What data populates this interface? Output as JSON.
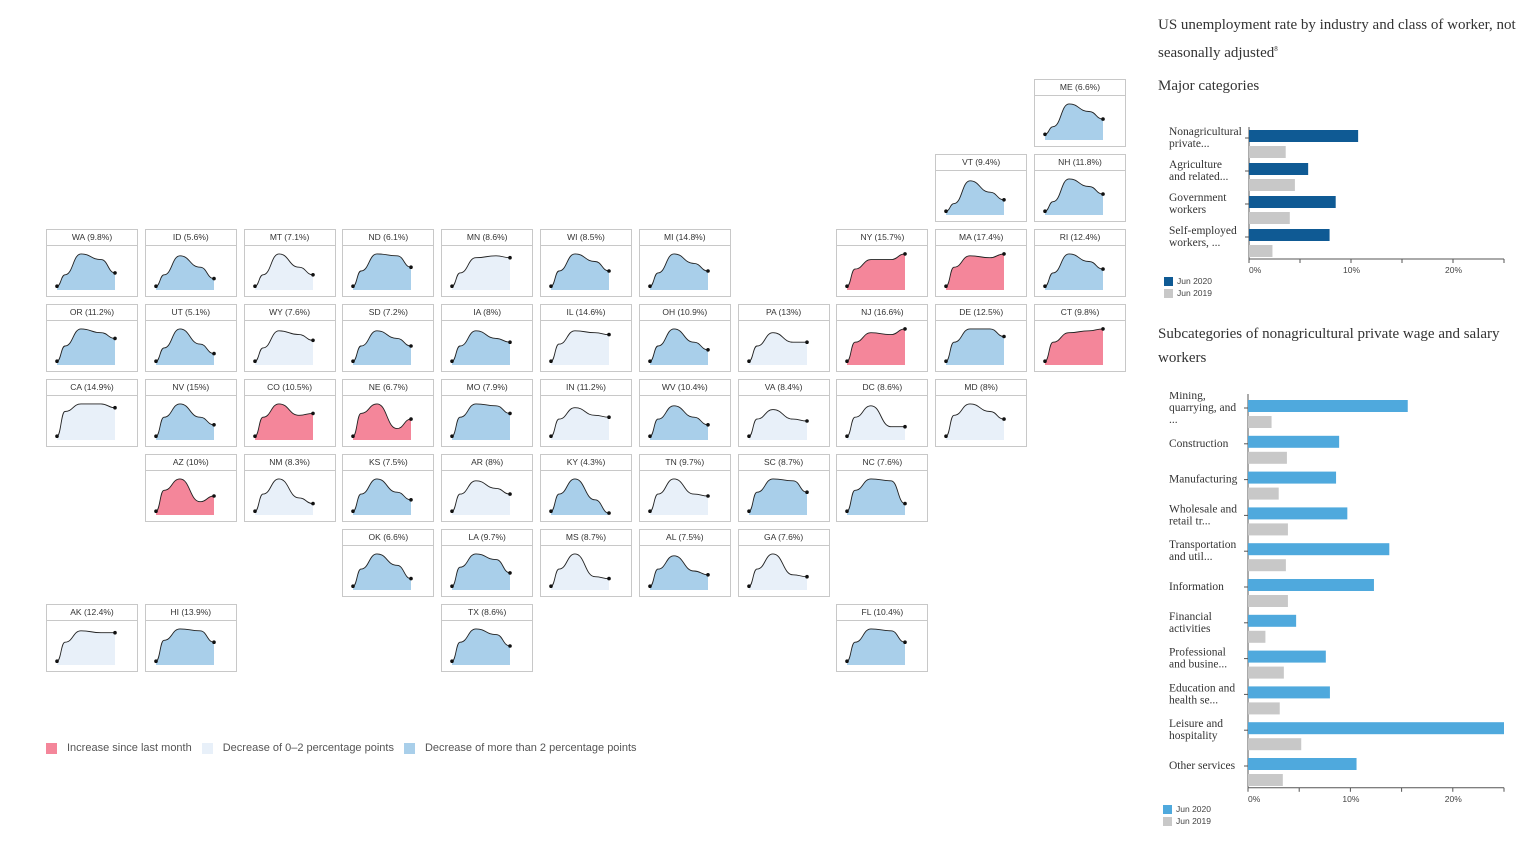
{
  "colors": {
    "increase": "#F4869A",
    "small_decrease": "#E8F0F9",
    "large_decrease": "#A9CFEA",
    "major_2020": "#0F5A94",
    "sub_2020": "#4FA9DD",
    "jun2019": "#C8C8C8"
  },
  "legend": {
    "increase": "Increase since last month",
    "small_decrease": "Decrease of 0–2 percentage points",
    "large_decrease": "Decrease of more than 2 percentage points"
  },
  "states": [
    {
      "abbr": "ME",
      "rate": "6.6%",
      "col": 10,
      "row": 0,
      "cat": "large_decrease",
      "curve": [
        0.15,
        0.35,
        0.95,
        0.75,
        0.55
      ]
    },
    {
      "abbr": "VT",
      "rate": "9.4%",
      "col": 9,
      "row": 1,
      "cat": "large_decrease",
      "curve": [
        0.1,
        0.3,
        0.9,
        0.6,
        0.4
      ]
    },
    {
      "abbr": "NH",
      "rate": "11.8%",
      "col": 10,
      "row": 1,
      "cat": "large_decrease",
      "curve": [
        0.1,
        0.35,
        0.95,
        0.75,
        0.55
      ]
    },
    {
      "abbr": "WA",
      "rate": "9.8%",
      "col": 0,
      "row": 2,
      "cat": "large_decrease",
      "curve": [
        0.1,
        0.4,
        0.95,
        0.8,
        0.45
      ]
    },
    {
      "abbr": "ID",
      "rate": "5.6%",
      "col": 1,
      "row": 2,
      "cat": "large_decrease",
      "curve": [
        0.1,
        0.4,
        0.9,
        0.6,
        0.3
      ]
    },
    {
      "abbr": "MT",
      "rate": "7.1%",
      "col": 2,
      "row": 2,
      "cat": "small_decrease",
      "curve": [
        0.1,
        0.4,
        0.95,
        0.6,
        0.4
      ]
    },
    {
      "abbr": "ND",
      "rate": "6.1%",
      "col": 3,
      "row": 2,
      "cat": "large_decrease",
      "curve": [
        0.1,
        0.5,
        0.95,
        0.9,
        0.6
      ]
    },
    {
      "abbr": "MN",
      "rate": "8.6%",
      "col": 4,
      "row": 2,
      "cat": "small_decrease",
      "curve": [
        0.1,
        0.45,
        0.85,
        0.9,
        0.85
      ]
    },
    {
      "abbr": "WI",
      "rate": "8.5%",
      "col": 5,
      "row": 2,
      "cat": "large_decrease",
      "curve": [
        0.1,
        0.5,
        0.95,
        0.75,
        0.5
      ]
    },
    {
      "abbr": "MI",
      "rate": "14.8%",
      "col": 6,
      "row": 2,
      "cat": "large_decrease",
      "curve": [
        0.1,
        0.45,
        0.95,
        0.7,
        0.5
      ]
    },
    {
      "abbr": "NY",
      "rate": "15.7%",
      "col": 8,
      "row": 2,
      "cat": "increase",
      "curve": [
        0.1,
        0.55,
        0.8,
        0.8,
        0.95
      ]
    },
    {
      "abbr": "MA",
      "rate": "17.4%",
      "col": 9,
      "row": 2,
      "cat": "increase",
      "curve": [
        0.1,
        0.6,
        0.9,
        0.85,
        0.95
      ]
    },
    {
      "abbr": "RI",
      "rate": "12.4%",
      "col": 10,
      "row": 2,
      "cat": "large_decrease",
      "curve": [
        0.1,
        0.45,
        0.95,
        0.75,
        0.55
      ]
    },
    {
      "abbr": "OR",
      "rate": "11.2%",
      "col": 0,
      "row": 3,
      "cat": "large_decrease",
      "curve": [
        0.1,
        0.5,
        0.95,
        0.85,
        0.7
      ]
    },
    {
      "abbr": "UT",
      "rate": "5.1%",
      "col": 1,
      "row": 3,
      "cat": "large_decrease",
      "curve": [
        0.1,
        0.45,
        0.95,
        0.55,
        0.3
      ]
    },
    {
      "abbr": "WY",
      "rate": "7.6%",
      "col": 2,
      "row": 3,
      "cat": "small_decrease",
      "curve": [
        0.1,
        0.45,
        0.9,
        0.8,
        0.65
      ]
    },
    {
      "abbr": "SD",
      "rate": "7.2%",
      "col": 3,
      "row": 3,
      "cat": "large_decrease",
      "curve": [
        0.1,
        0.5,
        0.9,
        0.7,
        0.5
      ]
    },
    {
      "abbr": "IA",
      "rate": "8%",
      "col": 4,
      "row": 3,
      "cat": "large_decrease",
      "curve": [
        0.1,
        0.5,
        0.9,
        0.7,
        0.6
      ]
    },
    {
      "abbr": "IL",
      "rate": "14.6%",
      "col": 5,
      "row": 3,
      "cat": "small_decrease",
      "curve": [
        0.1,
        0.55,
        0.9,
        0.85,
        0.8
      ]
    },
    {
      "abbr": "OH",
      "rate": "10.9%",
      "col": 6,
      "row": 3,
      "cat": "large_decrease",
      "curve": [
        0.1,
        0.5,
        0.95,
        0.6,
        0.4
      ]
    },
    {
      "abbr": "PA",
      "rate": "13%",
      "col": 7,
      "row": 3,
      "cat": "small_decrease",
      "curve": [
        0.1,
        0.5,
        0.85,
        0.6,
        0.6
      ]
    },
    {
      "abbr": "NJ",
      "rate": "16.6%",
      "col": 8,
      "row": 3,
      "cat": "increase",
      "curve": [
        0.1,
        0.6,
        0.85,
        0.8,
        0.95
      ]
    },
    {
      "abbr": "DE",
      "rate": "12.5%",
      "col": 9,
      "row": 3,
      "cat": "large_decrease",
      "curve": [
        0.1,
        0.6,
        0.95,
        0.95,
        0.75
      ]
    },
    {
      "abbr": "CT",
      "rate": "9.8%",
      "col": 10,
      "row": 3,
      "cat": "increase",
      "curve": [
        0.1,
        0.6,
        0.85,
        0.9,
        0.95
      ]
    },
    {
      "abbr": "CA",
      "rate": "14.9%",
      "col": 0,
      "row": 4,
      "cat": "small_decrease",
      "curve": [
        0.1,
        0.75,
        0.95,
        0.95,
        0.85
      ]
    },
    {
      "abbr": "NV",
      "rate": "15%",
      "col": 1,
      "row": 4,
      "cat": "large_decrease",
      "curve": [
        0.1,
        0.6,
        0.95,
        0.6,
        0.4
      ]
    },
    {
      "abbr": "CO",
      "rate": "10.5%",
      "col": 2,
      "row": 4,
      "cat": "increase",
      "curve": [
        0.1,
        0.6,
        0.95,
        0.65,
        0.7
      ]
    },
    {
      "abbr": "NE",
      "rate": "6.7%",
      "col": 3,
      "row": 4,
      "cat": "increase",
      "curve": [
        0.1,
        0.7,
        0.95,
        0.3,
        0.55
      ]
    },
    {
      "abbr": "MO",
      "rate": "7.9%",
      "col": 4,
      "row": 4,
      "cat": "large_decrease",
      "curve": [
        0.1,
        0.6,
        0.95,
        0.9,
        0.7
      ]
    },
    {
      "abbr": "IN",
      "rate": "11.2%",
      "col": 5,
      "row": 4,
      "cat": "small_decrease",
      "curve": [
        0.1,
        0.55,
        0.85,
        0.65,
        0.6
      ]
    },
    {
      "abbr": "WV",
      "rate": "10.4%",
      "col": 6,
      "row": 4,
      "cat": "large_decrease",
      "curve": [
        0.1,
        0.55,
        0.9,
        0.6,
        0.4
      ]
    },
    {
      "abbr": "VA",
      "rate": "8.4%",
      "col": 7,
      "row": 4,
      "cat": "small_decrease",
      "curve": [
        0.1,
        0.55,
        0.8,
        0.55,
        0.5
      ]
    },
    {
      "abbr": "DC",
      "rate": "8.6%",
      "col": 8,
      "row": 4,
      "cat": "small_decrease",
      "curve": [
        0.1,
        0.6,
        0.9,
        0.35,
        0.35
      ]
    },
    {
      "abbr": "MD",
      "rate": "8%",
      "col": 9,
      "row": 4,
      "cat": "small_decrease",
      "curve": [
        0.1,
        0.65,
        0.95,
        0.75,
        0.55
      ]
    },
    {
      "abbr": "AZ",
      "rate": "10%",
      "col": 1,
      "row": 5,
      "cat": "increase",
      "curve": [
        0.1,
        0.65,
        0.95,
        0.35,
        0.5
      ]
    },
    {
      "abbr": "NM",
      "rate": "8.3%",
      "col": 2,
      "row": 5,
      "cat": "small_decrease",
      "curve": [
        0.1,
        0.55,
        0.95,
        0.45,
        0.3
      ]
    },
    {
      "abbr": "KS",
      "rate": "7.5%",
      "col": 3,
      "row": 5,
      "cat": "large_decrease",
      "curve": [
        0.1,
        0.55,
        0.95,
        0.6,
        0.4
      ]
    },
    {
      "abbr": "AR",
      "rate": "8%",
      "col": 4,
      "row": 5,
      "cat": "small_decrease",
      "curve": [
        0.1,
        0.55,
        0.9,
        0.7,
        0.55
      ]
    },
    {
      "abbr": "KY",
      "rate": "4.3%",
      "col": 5,
      "row": 5,
      "cat": "large_decrease",
      "curve": [
        0.1,
        0.55,
        0.95,
        0.4,
        0.05
      ]
    },
    {
      "abbr": "TN",
      "rate": "9.7%",
      "col": 6,
      "row": 5,
      "cat": "small_decrease",
      "curve": [
        0.1,
        0.55,
        0.95,
        0.55,
        0.5
      ]
    },
    {
      "abbr": "SC",
      "rate": "8.7%",
      "col": 7,
      "row": 5,
      "cat": "large_decrease",
      "curve": [
        0.1,
        0.6,
        0.95,
        0.9,
        0.6
      ]
    },
    {
      "abbr": "NC",
      "rate": "7.6%",
      "col": 8,
      "row": 5,
      "cat": "large_decrease",
      "curve": [
        0.1,
        0.65,
        0.95,
        0.9,
        0.3
      ]
    },
    {
      "abbr": "OK",
      "rate": "6.6%",
      "col": 3,
      "row": 6,
      "cat": "large_decrease",
      "curve": [
        0.1,
        0.55,
        0.95,
        0.65,
        0.3
      ]
    },
    {
      "abbr": "LA",
      "rate": "9.7%",
      "col": 4,
      "row": 6,
      "cat": "large_decrease",
      "curve": [
        0.1,
        0.6,
        0.95,
        0.8,
        0.45
      ]
    },
    {
      "abbr": "MS",
      "rate": "8.7%",
      "col": 5,
      "row": 6,
      "cat": "small_decrease",
      "curve": [
        0.1,
        0.55,
        0.95,
        0.35,
        0.3
      ]
    },
    {
      "abbr": "AL",
      "rate": "7.5%",
      "col": 6,
      "row": 6,
      "cat": "large_decrease",
      "curve": [
        0.1,
        0.55,
        0.9,
        0.5,
        0.4
      ]
    },
    {
      "abbr": "GA",
      "rate": "7.6%",
      "col": 7,
      "row": 6,
      "cat": "small_decrease",
      "curve": [
        0.1,
        0.55,
        0.95,
        0.4,
        0.35
      ]
    },
    {
      "abbr": "AK",
      "rate": "12.4%",
      "col": 0,
      "row": 7,
      "cat": "small_decrease",
      "curve": [
        0.1,
        0.6,
        0.9,
        0.85,
        0.85
      ]
    },
    {
      "abbr": "HI",
      "rate": "13.9%",
      "col": 1,
      "row": 7,
      "cat": "large_decrease",
      "curve": [
        0.1,
        0.65,
        0.95,
        0.9,
        0.6
      ]
    },
    {
      "abbr": "TX",
      "rate": "8.6%",
      "col": 4,
      "row": 7,
      "cat": "large_decrease",
      "curve": [
        0.1,
        0.6,
        0.95,
        0.8,
        0.5
      ]
    },
    {
      "abbr": "FL",
      "rate": "10.4%",
      "col": 8,
      "row": 7,
      "cat": "large_decrease",
      "curve": [
        0.1,
        0.6,
        0.95,
        0.9,
        0.6
      ]
    }
  ],
  "panel": {
    "title": "US unemployment rate by industry and class of worker, not seasonally adjusted",
    "footnote": "8",
    "major_heading": "Major categories",
    "sub_heading": "Subcategories of nonagricultural private wage and salary workers"
  },
  "chart_data": [
    {
      "type": "bar",
      "orientation": "horizontal",
      "categories": [
        [
          "Nonagricultural",
          "private..."
        ],
        [
          "Agriculture",
          "and related..."
        ],
        [
          "Government",
          "workers"
        ],
        [
          "Self-employed",
          "workers, ..."
        ]
      ],
      "series": [
        {
          "name": "Jun 2020",
          "values": [
            10.7,
            5.8,
            8.5,
            7.9
          ]
        },
        {
          "name": "Jun 2019",
          "values": [
            3.6,
            4.5,
            4.0,
            2.3
          ]
        }
      ],
      "xlim": [
        0,
        25
      ],
      "ticks": [
        "0%",
        "10%",
        "20%"
      ],
      "tick_values": [
        0,
        10,
        20
      ]
    },
    {
      "type": "bar",
      "orientation": "horizontal",
      "categories": [
        [
          "Mining,",
          "quarrying, and",
          "..."
        ],
        [
          "Construction"
        ],
        [
          "Manufacturing"
        ],
        [
          "Wholesale and",
          "retail tr..."
        ],
        [
          "Transportation",
          "and util..."
        ],
        [
          "Information"
        ],
        [
          "Financial",
          "activities"
        ],
        [
          "Professional",
          "and busine..."
        ],
        [
          "Education and",
          "health se..."
        ],
        [
          "Leisure and",
          "hospitality"
        ],
        [
          "Other services"
        ]
      ],
      "series": [
        {
          "name": "Jun 2020",
          "values": [
            15.6,
            8.9,
            8.6,
            9.7,
            13.8,
            12.3,
            4.7,
            7.6,
            8.0,
            25.0,
            10.6
          ]
        },
        {
          "name": "Jun 2019",
          "values": [
            2.3,
            3.8,
            3.0,
            3.9,
            3.7,
            3.9,
            1.7,
            3.5,
            3.1,
            5.2,
            3.4
          ]
        }
      ],
      "xlim": [
        0,
        25
      ],
      "ticks": [
        "0%",
        "10%",
        "20%"
      ],
      "tick_values": [
        0,
        10,
        20
      ]
    }
  ]
}
